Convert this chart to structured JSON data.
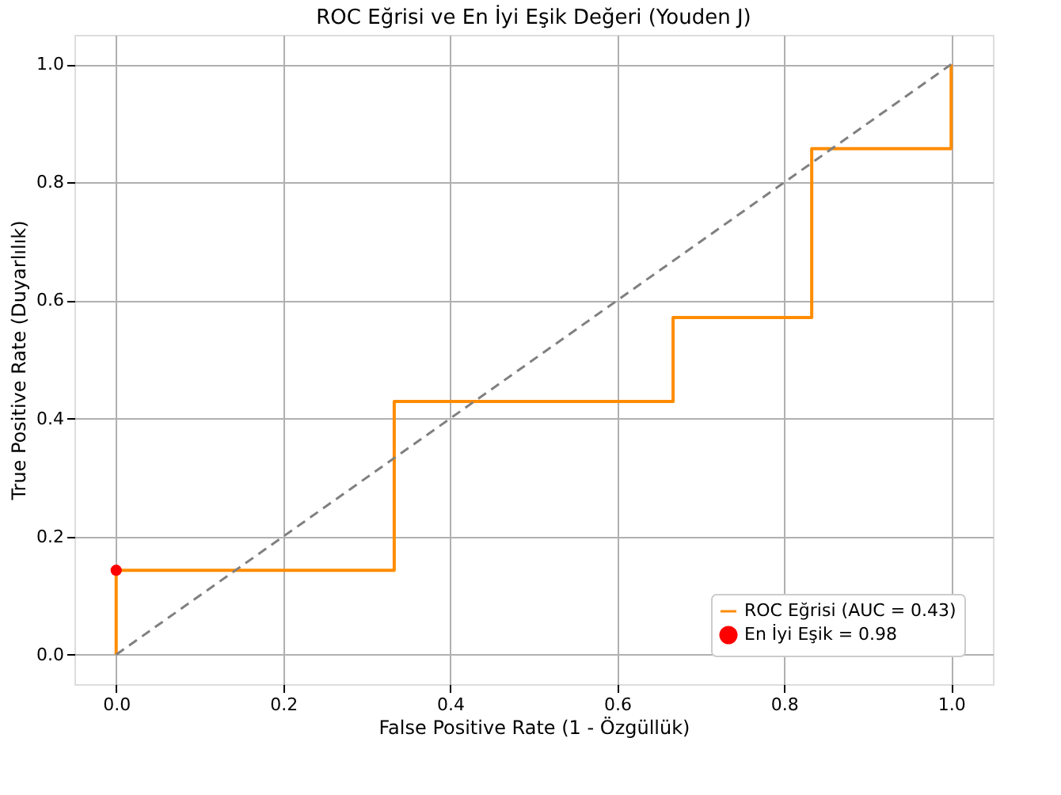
{
  "chart_data": {
    "type": "step",
    "title": "ROC Eğrisi ve En İyi Eşik Değeri (Youden J)",
    "xlabel": "False Positive Rate (1 - Özgüllük)",
    "ylabel": "True Positive Rate (Duyarlılık)",
    "xlim": [
      -0.05,
      1.05
    ],
    "ylim": [
      -0.05,
      1.05
    ],
    "xticks": [
      {
        "value": 0,
        "label": "0.0"
      },
      {
        "value": 0.2,
        "label": "0.2"
      },
      {
        "value": 0.4,
        "label": "0.4"
      },
      {
        "value": 0.6,
        "label": "0.6"
      },
      {
        "value": 0.8,
        "label": "0.8"
      },
      {
        "value": 1,
        "label": "1.0"
      }
    ],
    "yticks": [
      {
        "value": 0,
        "label": "0.0"
      },
      {
        "value": 0.2,
        "label": "0.2"
      },
      {
        "value": 0.4,
        "label": "0.4"
      },
      {
        "value": 0.6,
        "label": "0.6"
      },
      {
        "value": 0.8,
        "label": "0.8"
      },
      {
        "value": 1,
        "label": "1.0"
      }
    ],
    "grid": true,
    "legend": "bottom right",
    "series": [
      {
        "name": "ROC Eğrisi (AUC = 0.43)",
        "color": "#ff8c00",
        "line_style": "solid",
        "x": [
          0,
          0,
          0.333,
          0.667,
          0.833,
          1
        ],
        "values": [
          0,
          0.143,
          0.429,
          0.571,
          0.857,
          1
        ]
      },
      {
        "type": "line",
        "color": "#808080",
        "line_style": "dashed",
        "x": [
          0,
          1
        ],
        "values": [
          0,
          1
        ]
      },
      {
        "name": "En İyi Eşik = 0.98",
        "type": "scatter",
        "color": "#ff0000",
        "marker": "circle",
        "x": [
          0
        ],
        "values": [
          0.143
        ]
      }
    ]
  }
}
